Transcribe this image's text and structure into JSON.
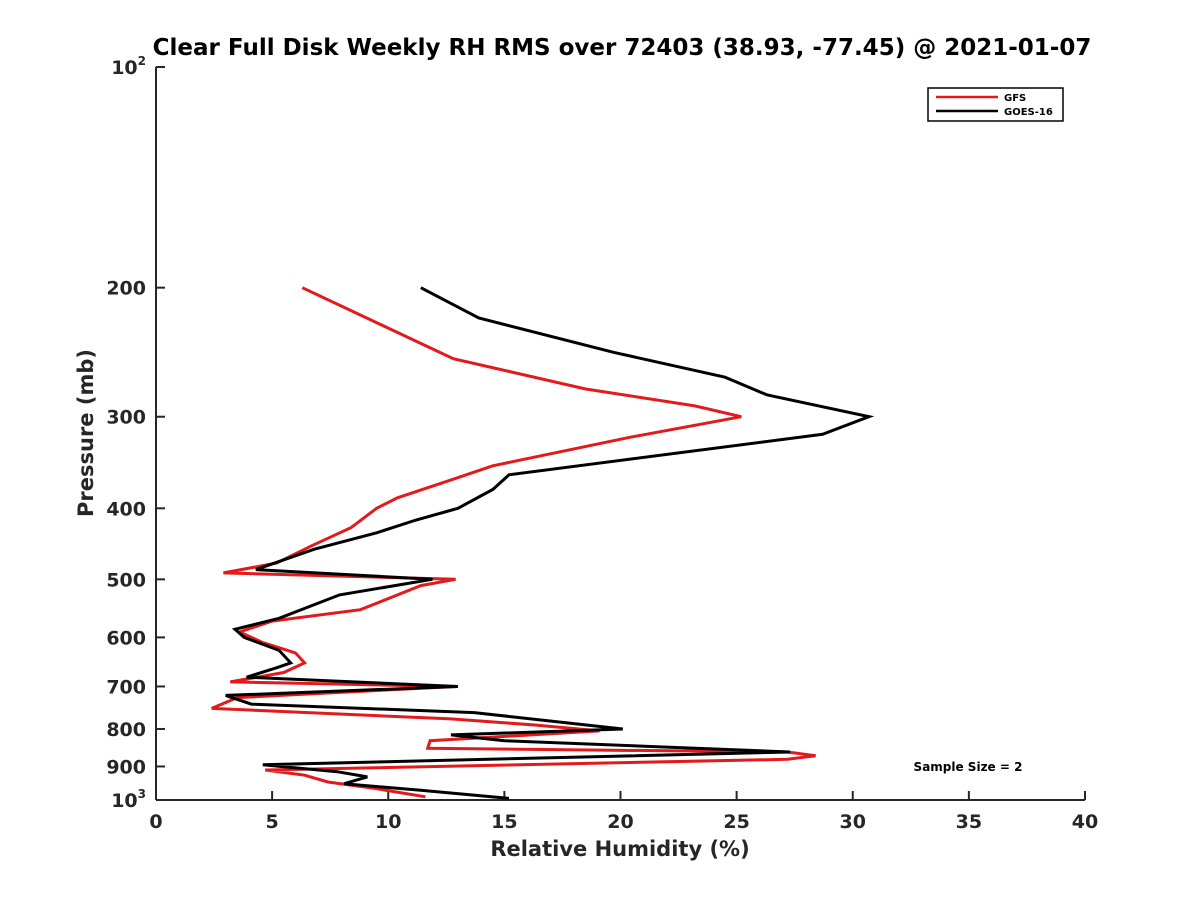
{
  "chart_data": {
    "type": "line",
    "title": "Clear Full Disk Weekly RH RMS over 72403 (38.93, -77.45) @ 2021-01-07",
    "xlabel": "Relative Humidity (%)",
    "ylabel": "Pressure (mb)",
    "xlim": [
      0,
      40
    ],
    "ylim": [
      100,
      1000
    ],
    "y_scale": "log",
    "y_reversed": true,
    "grid": false,
    "legend_position": "top-right",
    "x_ticks": [
      "0",
      "5",
      "10",
      "15",
      "20",
      "25",
      "30",
      "35",
      "40"
    ],
    "y_ticks": [
      {
        "value": 100,
        "base": "10",
        "exp": "2"
      },
      {
        "value": 200,
        "label": "200"
      },
      {
        "value": 300,
        "label": "300"
      },
      {
        "value": 400,
        "label": "400"
      },
      {
        "value": 500,
        "label": "500"
      },
      {
        "value": 600,
        "label": "600"
      },
      {
        "value": 700,
        "label": "700"
      },
      {
        "value": 800,
        "label": "800"
      },
      {
        "value": 900,
        "label": "900"
      },
      {
        "value": 1000,
        "base": "10",
        "exp": "3"
      }
    ],
    "annotation": "Sample Size = 2",
    "series": [
      {
        "name": "GFS",
        "color": "#e31a1c",
        "points": [
          [
            6.3,
            200
          ],
          [
            12.8,
            250
          ],
          [
            18.5,
            275
          ],
          [
            23.2,
            290
          ],
          [
            25.2,
            300
          ],
          [
            20.4,
            320
          ],
          [
            14.5,
            350
          ],
          [
            12.8,
            365
          ],
          [
            10.4,
            387
          ],
          [
            9.5,
            400
          ],
          [
            8.4,
            425
          ],
          [
            6.7,
            450
          ],
          [
            5.2,
            475
          ],
          [
            2.9,
            490
          ],
          [
            12.9,
            500
          ],
          [
            11.4,
            510
          ],
          [
            8.8,
            550
          ],
          [
            5.0,
            570
          ],
          [
            3.6,
            590
          ],
          [
            4.6,
            610
          ],
          [
            6.0,
            630
          ],
          [
            6.4,
            650
          ],
          [
            5.5,
            670
          ],
          [
            3.2,
            690
          ],
          [
            12.9,
            700
          ],
          [
            3.5,
            725
          ],
          [
            2.4,
            750
          ],
          [
            12.7,
            775
          ],
          [
            16.3,
            790
          ],
          [
            19.1,
            805
          ],
          [
            11.8,
            830
          ],
          [
            11.7,
            850
          ],
          [
            27.2,
            860
          ],
          [
            28.4,
            870
          ],
          [
            27.2,
            880
          ],
          [
            4.7,
            910
          ],
          [
            6.4,
            925
          ],
          [
            7.4,
            945
          ],
          [
            9.5,
            965
          ],
          [
            11.6,
            990
          ]
        ]
      },
      {
        "name": "GOES-16",
        "color": "#000000",
        "points": [
          [
            11.4,
            200
          ],
          [
            13.9,
            220
          ],
          [
            19.7,
            245
          ],
          [
            24.5,
            265
          ],
          [
            26.3,
            280
          ],
          [
            30.7,
            300
          ],
          [
            28.7,
            317
          ],
          [
            15.2,
            360
          ],
          [
            14.5,
            377
          ],
          [
            13.0,
            400
          ],
          [
            11.2,
            415
          ],
          [
            9.5,
            432
          ],
          [
            6.8,
            455
          ],
          [
            4.3,
            485
          ],
          [
            11.9,
            500
          ],
          [
            7.9,
            525
          ],
          [
            5.3,
            565
          ],
          [
            3.4,
            585
          ],
          [
            3.8,
            600
          ],
          [
            5.3,
            625
          ],
          [
            5.8,
            650
          ],
          [
            5.2,
            660
          ],
          [
            3.9,
            680
          ],
          [
            13.0,
            700
          ],
          [
            3.0,
            720
          ],
          [
            4.1,
            740
          ],
          [
            13.7,
            760
          ],
          [
            20.1,
            800
          ],
          [
            12.7,
            815
          ],
          [
            15.0,
            830
          ],
          [
            27.3,
            860
          ],
          [
            4.6,
            895
          ],
          [
            7.8,
            915
          ],
          [
            9.1,
            930
          ],
          [
            8.1,
            950
          ],
          [
            11.4,
            970
          ],
          [
            15.2,
            995
          ]
        ]
      }
    ]
  }
}
